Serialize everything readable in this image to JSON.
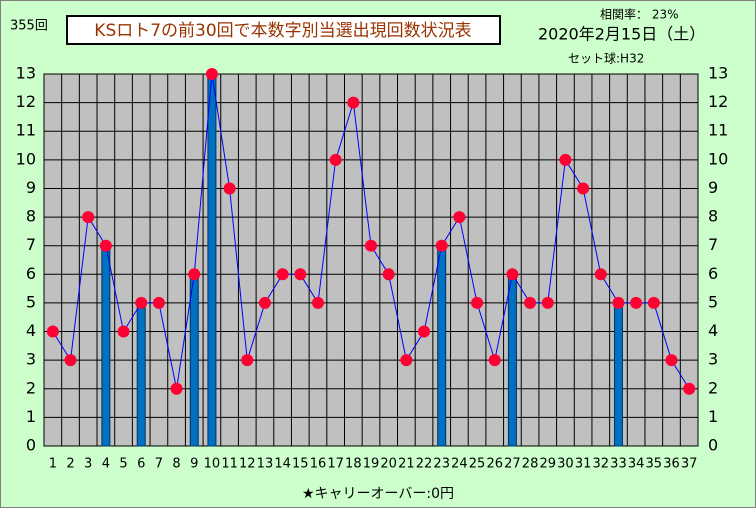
{
  "draw_label": "355回",
  "correlation": "相関率： 23%",
  "date": "2020年2月15日（土）",
  "set_ball": "セット球:H32",
  "carryover": "★キャリーオーバー:0円",
  "chart_data": {
    "type": "line",
    "title": "KSロト7の前30回で本数字別当選出現回数状況表",
    "categories": [
      "1",
      "2",
      "3",
      "4",
      "5",
      "6",
      "7",
      "8",
      "9",
      "10",
      "11",
      "12",
      "13",
      "14",
      "15",
      "16",
      "17",
      "18",
      "19",
      "20",
      "21",
      "22",
      "23",
      "24",
      "25",
      "26",
      "27",
      "28",
      "29",
      "30",
      "31",
      "32",
      "33",
      "34",
      "35",
      "36",
      "37"
    ],
    "series": [
      {
        "type": "line",
        "color": "#0000ff",
        "marker_color": "#ff0033",
        "values": [
          4,
          3,
          8,
          7,
          4,
          5,
          5,
          2,
          6,
          13,
          9,
          3,
          5,
          6,
          6,
          5,
          10,
          12,
          7,
          6,
          3,
          4,
          7,
          8,
          5,
          3,
          6,
          5,
          5,
          10,
          9,
          6,
          5,
          5,
          5,
          3,
          2
        ]
      },
      {
        "type": "bar",
        "color": "#0070c0",
        "values": [
          null,
          null,
          null,
          7,
          null,
          5,
          null,
          null,
          6,
          13,
          null,
          null,
          null,
          null,
          null,
          null,
          null,
          null,
          null,
          null,
          null,
          null,
          7,
          null,
          null,
          null,
          6,
          null,
          null,
          null,
          null,
          null,
          5,
          null,
          null,
          null,
          null
        ]
      }
    ],
    "ylim": [
      0,
      13
    ],
    "yticks": [
      0,
      1,
      2,
      3,
      4,
      5,
      6,
      7,
      8,
      9,
      10,
      11,
      12,
      13
    ],
    "grid": true
  }
}
